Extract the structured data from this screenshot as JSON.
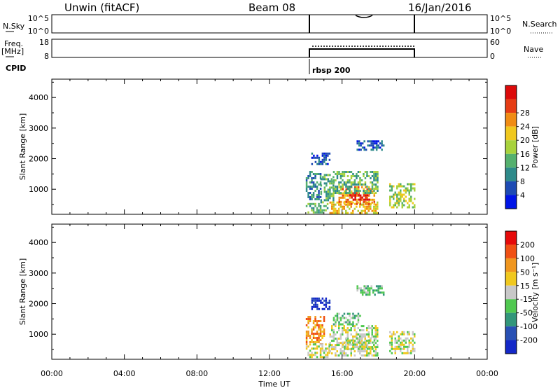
{
  "header": {
    "station": "Unwin (fitACF)",
    "beam": "Beam 08",
    "date": "16/Jan/2016"
  },
  "noise_panel": {
    "left_label": "N.Sky",
    "right_label": "N.Search",
    "left_ticks": [
      "10^5",
      "10^0"
    ],
    "right_ticks": [
      "10^5",
      "10^0"
    ]
  },
  "freq_panel": {
    "left_label_line1": "Freq.",
    "left_label_line2": "[MHz]",
    "right_label": "Nave",
    "left_ticks": [
      "18",
      "8"
    ],
    "right_ticks": [
      "60",
      "0"
    ]
  },
  "cpid": {
    "label": "CPID",
    "program_label": "rbsp 200",
    "program_start_hour": 14
  },
  "chart_data": [
    {
      "type": "heatmap",
      "name": "power",
      "ylabel": "Slant Range [km]",
      "ylim": [
        180,
        4600
      ],
      "yticks": [
        "1000",
        "2000",
        "3000",
        "4000"
      ],
      "ytick_values": [
        1000,
        2000,
        3000,
        4000
      ],
      "xlim": [
        0,
        24
      ],
      "data_time_range": [
        14,
        20
      ],
      "colorbar": {
        "label": "Power [dB]",
        "ticks": [
          "4",
          "8",
          "12",
          "16",
          "20",
          "24",
          "28"
        ],
        "colors": [
          "#0014e6",
          "#1e4bb4",
          "#2e8a8a",
          "#55b06e",
          "#a8d23c",
          "#f0c81e",
          "#f08c14",
          "#e63c14",
          "#dc0a0a"
        ]
      },
      "scatter_regions": [
        {
          "t0": 14.0,
          "t1": 15.2,
          "r0": 250,
          "r1": 550,
          "level": 3
        },
        {
          "t0": 14.0,
          "t1": 14.8,
          "r0": 700,
          "r1": 1600,
          "level": 2
        },
        {
          "t0": 14.8,
          "t1": 15.5,
          "r0": 600,
          "r1": 1500,
          "level": 3
        },
        {
          "t0": 15.3,
          "t1": 18.0,
          "r0": 220,
          "r1": 600,
          "level": 5
        },
        {
          "t0": 15.8,
          "t1": 17.8,
          "r0": 550,
          "r1": 1100,
          "level": 6
        },
        {
          "t0": 16.3,
          "t1": 17.5,
          "r0": 650,
          "r1": 900,
          "level": 8
        },
        {
          "t0": 15.5,
          "t1": 18.0,
          "r0": 900,
          "r1": 1600,
          "level": 3
        },
        {
          "t0": 18.6,
          "t1": 20.0,
          "r0": 400,
          "r1": 1200,
          "level": 4
        },
        {
          "t0": 14.3,
          "t1": 15.3,
          "r0": 1800,
          "r1": 2200,
          "level": 1
        },
        {
          "t0": 16.8,
          "t1": 18.3,
          "r0": 2300,
          "r1": 2600,
          "level": 1
        }
      ]
    },
    {
      "type": "heatmap",
      "name": "velocity",
      "ylabel": "Slant Range [km]",
      "ylim": [
        180,
        4600
      ],
      "yticks": [
        "1000",
        "2000",
        "3000",
        "4000"
      ],
      "ytick_values": [
        1000,
        2000,
        3000,
        4000
      ],
      "xlim": [
        0,
        24
      ],
      "xlabel": "Time UT",
      "xticks": [
        "00:00",
        "04:00",
        "08:00",
        "12:00",
        "16:00",
        "20:00",
        "00:00"
      ],
      "xtick_values": [
        0,
        4,
        8,
        12,
        16,
        20,
        24
      ],
      "colorbar": {
        "label": "Velocity [m s⁻¹]",
        "ticks": [
          "200",
          "100",
          "50",
          "15",
          "-15",
          "-50",
          "-100",
          "-200"
        ],
        "colors": [
          "#1428c8",
          "#2850b4",
          "#32967a",
          "#50c850",
          "#c8c8c8",
          "#f0c81e",
          "#f0961e",
          "#f05014",
          "#e60a0a"
        ]
      },
      "scatter_regions": [
        {
          "t0": 14.0,
          "t1": 15.0,
          "r0": 700,
          "r1": 1600,
          "level": 6
        },
        {
          "t0": 14.0,
          "t1": 15.3,
          "r0": 250,
          "r1": 700,
          "level": 4
        },
        {
          "t0": 15.3,
          "t1": 18.0,
          "r0": 300,
          "r1": 1300,
          "level": 4
        },
        {
          "t0": 16.0,
          "t1": 17.8,
          "r0": 550,
          "r1": 900,
          "level": 4
        },
        {
          "t0": 15.5,
          "t1": 17.0,
          "r0": 1300,
          "r1": 1700,
          "level": 3
        },
        {
          "t0": 18.6,
          "t1": 20.0,
          "r0": 400,
          "r1": 1100,
          "level": 4
        },
        {
          "t0": 14.3,
          "t1": 15.3,
          "r0": 1850,
          "r1": 2200,
          "level": 0
        },
        {
          "t0": 16.8,
          "t1": 18.3,
          "r0": 2300,
          "r1": 2600,
          "level": 3
        }
      ]
    }
  ]
}
